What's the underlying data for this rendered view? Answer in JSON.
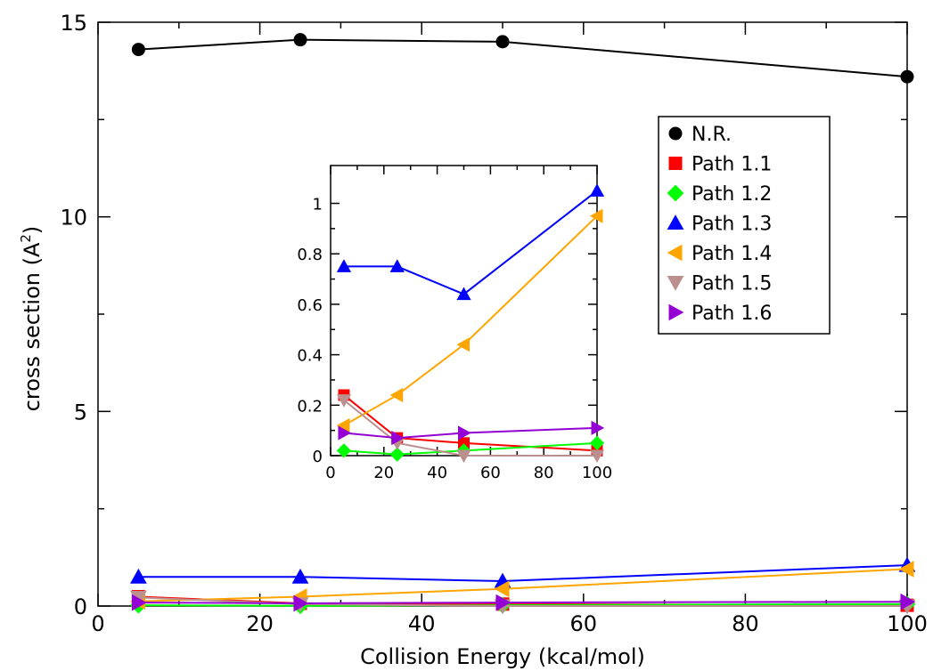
{
  "chart_data": [
    {
      "type": "line",
      "role": "main",
      "xlabel": "Collision Energy (kcal/mol)",
      "ylabel": "cross section (A",
      "ylabel_sup": "2",
      "ylabel_close": ")",
      "xlim": [
        0,
        100
      ],
      "ylim": [
        0,
        15
      ],
      "xticks": [
        0,
        20,
        40,
        60,
        80,
        100
      ],
      "yticks": [
        0,
        5,
        10,
        15
      ],
      "x": [
        5,
        25,
        50,
        100
      ],
      "series": [
        {
          "name": "N.R.",
          "color": "#000000",
          "marker": "circle",
          "values": [
            14.3,
            14.55,
            14.5,
            13.6
          ]
        },
        {
          "name": "Path 1.1",
          "color": "#ff0000",
          "marker": "square",
          "values": [
            0.24,
            0.07,
            0.05,
            0.02
          ]
        },
        {
          "name": "Path 1.2",
          "color": "#00ff00",
          "marker": "diamond",
          "values": [
            0.02,
            0.005,
            0.02,
            0.05
          ]
        },
        {
          "name": "Path 1.3",
          "color": "#0000ff",
          "marker": "triangle-up",
          "values": [
            0.75,
            0.75,
            0.64,
            1.05
          ]
        },
        {
          "name": "Path 1.4",
          "color": "#ffa500",
          "marker": "triangle-left",
          "values": [
            0.12,
            0.24,
            0.44,
            0.95
          ]
        },
        {
          "name": "Path 1.5",
          "color": "#bc8f8f",
          "marker": "triangle-down",
          "values": [
            0.22,
            0.05,
            0.0,
            0.0
          ]
        },
        {
          "name": "Path 1.6",
          "color": "#9400d3",
          "marker": "triangle-right",
          "values": [
            0.09,
            0.07,
            0.09,
            0.11
          ]
        }
      ],
      "legend": "top-right"
    },
    {
      "type": "line",
      "role": "inset",
      "xlim": [
        0,
        100
      ],
      "ylim": [
        0,
        1.15
      ],
      "xticks": [
        0,
        20,
        40,
        60,
        80,
        100
      ],
      "yticks": [
        0,
        0.2,
        0.4,
        0.6,
        0.8,
        1
      ],
      "ytick_labels": [
        "0",
        "0.2",
        "0.4",
        "0.6",
        "0.8",
        "1"
      ],
      "x": [
        5,
        25,
        50,
        100
      ],
      "series_ref": [
        "Path 1.1",
        "Path 1.2",
        "Path 1.3",
        "Path 1.4",
        "Path 1.5",
        "Path 1.6"
      ]
    }
  ]
}
